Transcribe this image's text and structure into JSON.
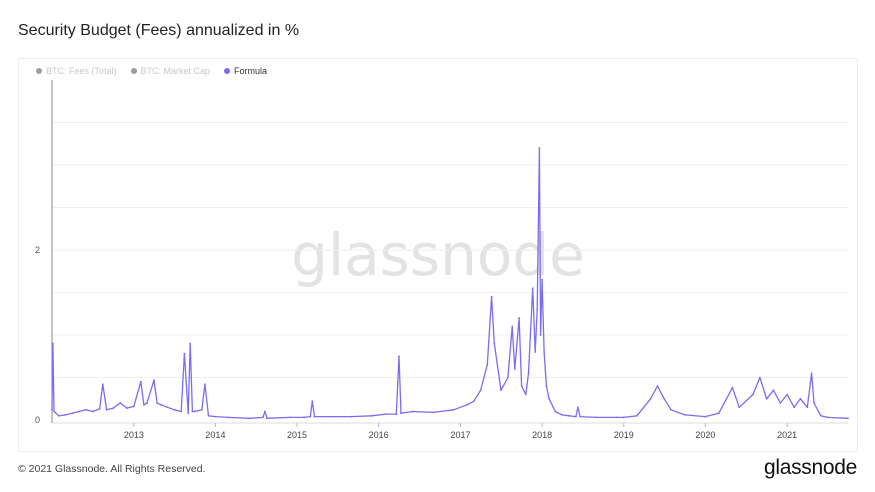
{
  "title": "Security Budget (Fees) annualized in %",
  "footer": "© 2021 Glassnode. All Rights Reserved.",
  "brand": "glassnode",
  "watermark": "glassnode",
  "legend": [
    {
      "label": "BTC: Fees (Total)",
      "color": "#9e9e9e",
      "active": false
    },
    {
      "label": "BTC: Market Cap",
      "color": "#9e9e9e",
      "active": false
    },
    {
      "label": "Formula",
      "color": "#7b6cf2",
      "active": true
    }
  ],
  "chart_data": {
    "type": "line",
    "title": "Security Budget (Fees) annualized in %",
    "xlabel": "",
    "ylabel": "",
    "x_ticks": [
      "2013",
      "2014",
      "2015",
      "2016",
      "2017",
      "2018",
      "2019",
      "2020",
      "2021"
    ],
    "y_ticks": [
      "0",
      "2"
    ],
    "ylim": [
      0,
      4
    ],
    "xlim": [
      "2012-01-01",
      "2021-09-30"
    ],
    "grid": true,
    "legend_position": "top-left",
    "series": [
      {
        "name": "Formula",
        "color": "#7b6cf2",
        "points": [
          [
            "2012-01-01",
            0.12
          ],
          [
            "2012-01-05",
            0.9
          ],
          [
            "2012-01-10",
            0.1
          ],
          [
            "2012-02-01",
            0.05
          ],
          [
            "2012-03-01",
            0.06
          ],
          [
            "2012-04-01",
            0.08
          ],
          [
            "2012-05-01",
            0.1
          ],
          [
            "2012-06-01",
            0.12
          ],
          [
            "2012-07-01",
            0.1
          ],
          [
            "2012-08-01",
            0.13
          ],
          [
            "2012-08-15",
            0.42
          ],
          [
            "2012-09-01",
            0.12
          ],
          [
            "2012-10-01",
            0.14
          ],
          [
            "2012-11-01",
            0.2
          ],
          [
            "2012-12-01",
            0.14
          ],
          [
            "2013-01-01",
            0.16
          ],
          [
            "2013-02-01",
            0.45
          ],
          [
            "2013-02-15",
            0.18
          ],
          [
            "2013-03-01",
            0.2
          ],
          [
            "2013-04-01",
            0.47
          ],
          [
            "2013-04-15",
            0.2
          ],
          [
            "2013-05-01",
            0.18
          ],
          [
            "2013-06-01",
            0.15
          ],
          [
            "2013-07-01",
            0.12
          ],
          [
            "2013-08-01",
            0.1
          ],
          [
            "2013-08-15",
            0.78
          ],
          [
            "2013-09-01",
            0.08
          ],
          [
            "2013-09-10",
            0.9
          ],
          [
            "2013-09-20",
            0.1
          ],
          [
            "2013-10-01",
            0.1
          ],
          [
            "2013-11-01",
            0.12
          ],
          [
            "2013-11-15",
            0.42
          ],
          [
            "2013-12-01",
            0.05
          ],
          [
            "2014-01-01",
            0.04
          ],
          [
            "2014-03-01",
            0.03
          ],
          [
            "2014-06-01",
            0.02
          ],
          [
            "2014-08-01",
            0.03
          ],
          [
            "2014-08-10",
            0.1
          ],
          [
            "2014-08-20",
            0.02
          ],
          [
            "2014-12-01",
            0.03
          ],
          [
            "2015-02-01",
            0.03
          ],
          [
            "2015-03-01",
            0.04
          ],
          [
            "2015-03-10",
            0.22
          ],
          [
            "2015-03-20",
            0.04
          ],
          [
            "2015-06-01",
            0.04
          ],
          [
            "2015-09-01",
            0.04
          ],
          [
            "2015-12-01",
            0.05
          ],
          [
            "2016-02-01",
            0.07
          ],
          [
            "2016-03-20",
            0.07
          ],
          [
            "2016-04-01",
            0.75
          ],
          [
            "2016-04-10",
            0.08
          ],
          [
            "2016-06-01",
            0.1
          ],
          [
            "2016-09-01",
            0.09
          ],
          [
            "2016-12-01",
            0.12
          ],
          [
            "2017-02-01",
            0.18
          ],
          [
            "2017-03-01",
            0.22
          ],
          [
            "2017-04-01",
            0.35
          ],
          [
            "2017-05-01",
            0.65
          ],
          [
            "2017-05-20",
            1.45
          ],
          [
            "2017-06-01",
            0.9
          ],
          [
            "2017-07-01",
            0.35
          ],
          [
            "2017-08-01",
            0.5
          ],
          [
            "2017-08-20",
            1.1
          ],
          [
            "2017-09-01",
            0.6
          ],
          [
            "2017-09-20",
            1.2
          ],
          [
            "2017-10-01",
            0.4
          ],
          [
            "2017-10-20",
            0.3
          ],
          [
            "2017-11-01",
            0.55
          ],
          [
            "2017-11-20",
            1.55
          ],
          [
            "2017-12-01",
            0.8
          ],
          [
            "2017-12-10",
            1.3
          ],
          [
            "2017-12-20",
            3.2
          ],
          [
            "2017-12-25",
            1.0
          ],
          [
            "2018-01-01",
            1.65
          ],
          [
            "2018-01-10",
            0.8
          ],
          [
            "2018-01-20",
            0.4
          ],
          [
            "2018-02-01",
            0.25
          ],
          [
            "2018-03-01",
            0.1
          ],
          [
            "2018-04-01",
            0.06
          ],
          [
            "2018-05-01",
            0.05
          ],
          [
            "2018-06-01",
            0.04
          ],
          [
            "2018-06-10",
            0.15
          ],
          [
            "2018-06-20",
            0.04
          ],
          [
            "2018-09-01",
            0.03
          ],
          [
            "2018-12-01",
            0.03
          ],
          [
            "2019-01-01",
            0.03
          ],
          [
            "2019-03-01",
            0.05
          ],
          [
            "2019-05-01",
            0.25
          ],
          [
            "2019-06-01",
            0.4
          ],
          [
            "2019-07-01",
            0.25
          ],
          [
            "2019-08-01",
            0.12
          ],
          [
            "2019-10-01",
            0.06
          ],
          [
            "2020-01-01",
            0.04
          ],
          [
            "2020-03-01",
            0.08
          ],
          [
            "2020-05-01",
            0.38
          ],
          [
            "2020-06-01",
            0.15
          ],
          [
            "2020-08-01",
            0.3
          ],
          [
            "2020-09-01",
            0.5
          ],
          [
            "2020-10-01",
            0.25
          ],
          [
            "2020-11-01",
            0.35
          ],
          [
            "2020-12-01",
            0.2
          ],
          [
            "2021-01-01",
            0.3
          ],
          [
            "2021-02-01",
            0.15
          ],
          [
            "2021-03-01",
            0.25
          ],
          [
            "2021-04-01",
            0.15
          ],
          [
            "2021-04-20",
            0.55
          ],
          [
            "2021-05-01",
            0.2
          ],
          [
            "2021-06-01",
            0.05
          ],
          [
            "2021-07-01",
            0.03
          ],
          [
            "2021-09-30",
            0.02
          ]
        ]
      }
    ]
  }
}
